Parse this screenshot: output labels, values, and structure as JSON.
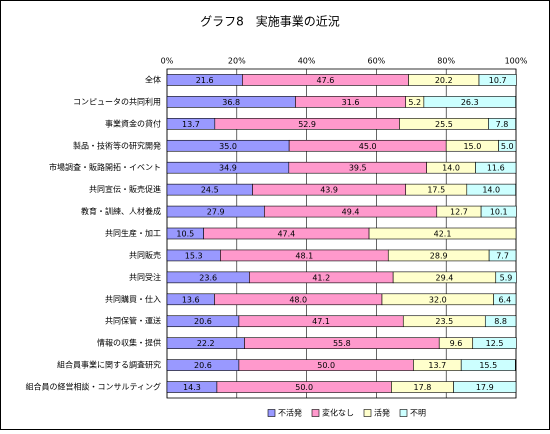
{
  "chart_data": {
    "type": "stacked-barh",
    "title": "グラフ8　実施事業の近況",
    "categories": [
      "全体",
      "コンピュータの共同利用",
      "事業資金の貸付",
      "製品・技術等の研究開発",
      "市場調査・販路開拓・イベント",
      "共同宣伝・販売促進",
      "教育・訓練、人材養成",
      "共同生産・加工",
      "共同販売",
      "共同受注",
      "共同購買・仕入",
      "共同保管・運送",
      "情報の収集・提供",
      "組合員事業に関する調査研究",
      "組合員の経営相談・コンサルティング"
    ],
    "series": [
      {
        "name": "不活発",
        "color": "#9999ff",
        "values": [
          21.6,
          36.8,
          13.7,
          35.0,
          34.9,
          24.5,
          27.9,
          10.5,
          15.3,
          23.6,
          13.6,
          20.6,
          22.2,
          20.6,
          14.3
        ],
        "value_labels": [
          "21.6",
          "36.8",
          "13.7",
          "35.0",
          "34.9",
          "24.5",
          "27.9",
          "10.5",
          "15.3",
          "23.6",
          "13.6",
          "20.6",
          "22.2",
          "20.6",
          "14.3"
        ]
      },
      {
        "name": "変化なし",
        "color": "#ff99cc",
        "values": [
          47.6,
          31.6,
          52.9,
          45.0,
          39.5,
          43.9,
          49.4,
          47.4,
          48.1,
          41.2,
          48.0,
          47.1,
          55.8,
          50.0,
          50.0
        ],
        "value_labels": [
          "47.6",
          "31.6",
          "52.9",
          "45.0",
          "39.5",
          "43.9",
          "49.4",
          "47.4",
          "48.1",
          "41.2",
          "48.0",
          "47.1",
          "55.8",
          "50.0",
          "50.0"
        ]
      },
      {
        "name": "活発",
        "color": "#ffffcc",
        "values": [
          20.2,
          5.2,
          25.5,
          15.0,
          14.0,
          17.5,
          12.7,
          42.1,
          28.9,
          29.4,
          32.0,
          23.5,
          9.6,
          13.7,
          17.8
        ],
        "value_labels": [
          "20.2",
          "5.2",
          "25.5",
          "15.0",
          "14.0",
          "17.5",
          "12.7",
          "42.1",
          "28.9",
          "29.4",
          "32.0",
          "23.5",
          "9.6",
          "13.7",
          "17.8"
        ]
      },
      {
        "name": "不明",
        "color": "#ccffff",
        "values": [
          10.7,
          26.3,
          7.8,
          5.0,
          11.6,
          14.0,
          10.1,
          null,
          7.7,
          5.9,
          6.4,
          8.8,
          12.5,
          15.5,
          17.9
        ],
        "value_labels": [
          "10.7",
          "26.3",
          "7.8",
          "5.0",
          "11.6",
          "14.0",
          "10.1",
          null,
          "7.7",
          "5.9",
          "6.4",
          "8.8",
          "12.5",
          "15.5",
          "17.9"
        ]
      }
    ],
    "xlim": [
      0,
      100
    ],
    "xticks": [
      {
        "value": 0,
        "label": "0%"
      },
      {
        "value": 20,
        "label": "20%"
      },
      {
        "value": 40,
        "label": "40%"
      },
      {
        "value": 60,
        "label": "60%"
      },
      {
        "value": 80,
        "label": "80%"
      },
      {
        "value": 100,
        "label": "100%"
      }
    ],
    "grid": true,
    "legend": "bottom"
  }
}
